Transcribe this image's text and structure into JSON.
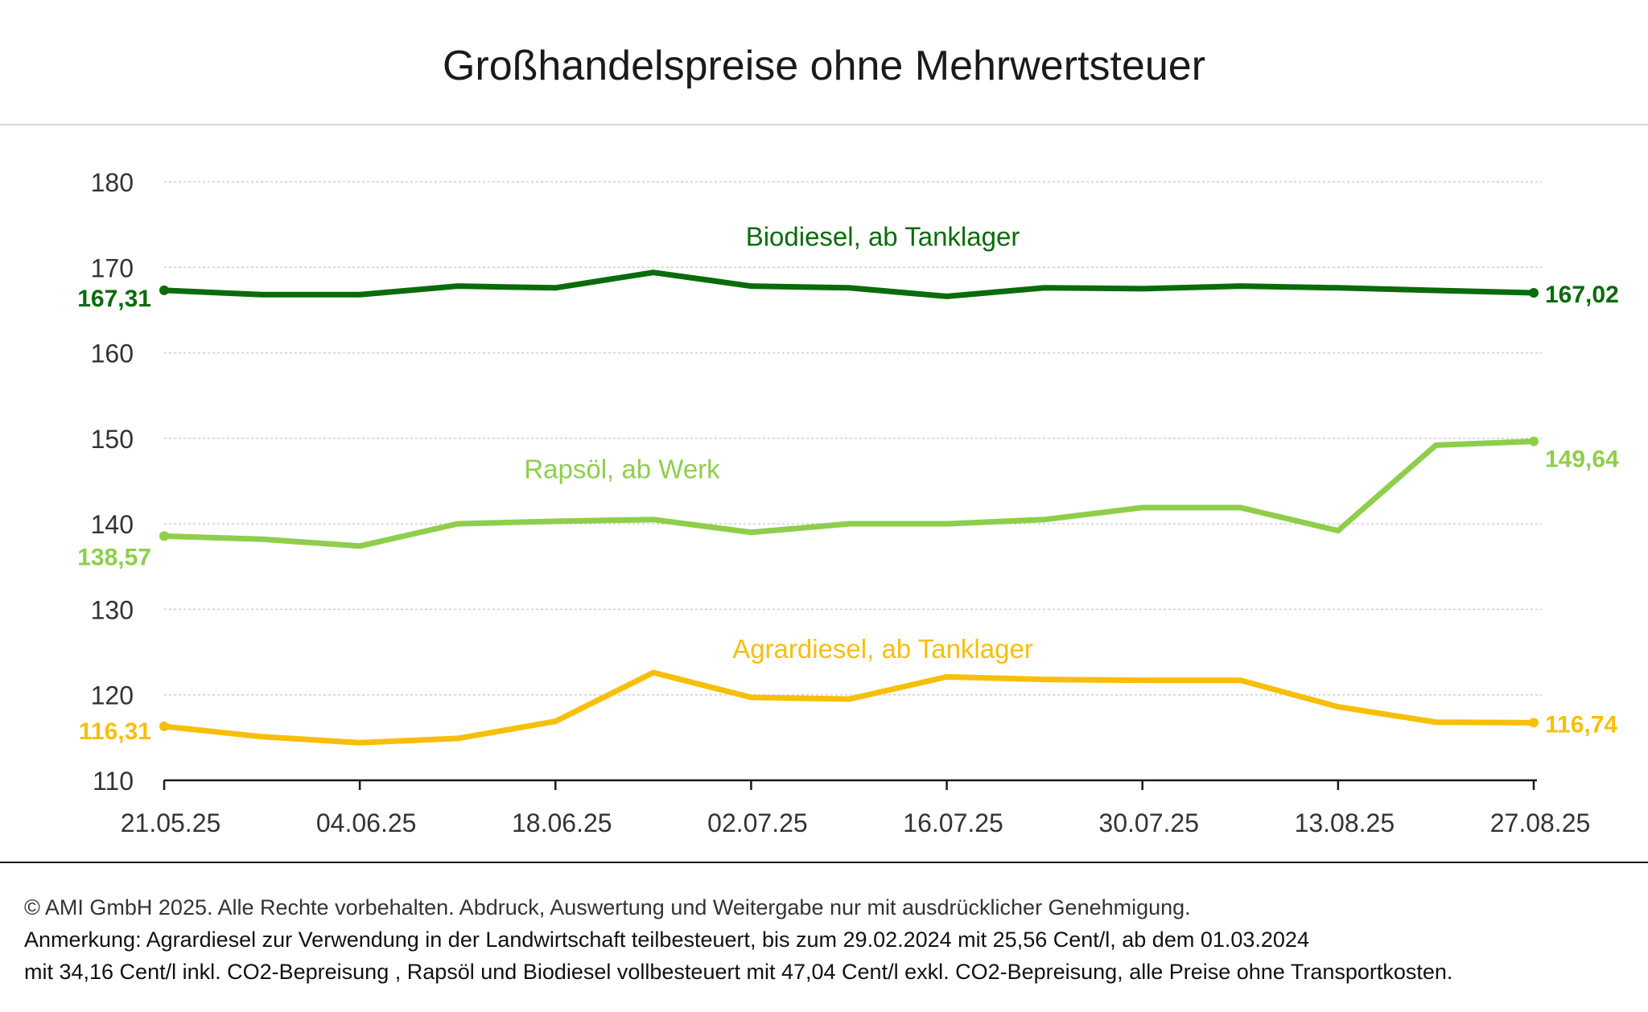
{
  "title": "Großhandelspreise ohne Mehrwertsteuer",
  "colors": {
    "biodiesel": "#0a6b0a",
    "rapsoel": "#8fce4c",
    "agrardiesel": "#f7bf0a",
    "grid": "#cfcfcf",
    "axis": "#1a1a1a",
    "text": "#333333"
  },
  "chart_data": {
    "type": "line",
    "title": "Großhandelspreise ohne Mehrwertsteuer",
    "xlabel": "",
    "ylabel": "",
    "ylim": [
      110,
      180
    ],
    "yticks": [
      "110",
      "120",
      "130",
      "140",
      "150",
      "160",
      "170",
      "180"
    ],
    "ytick_values": [
      110,
      120,
      130,
      140,
      150,
      160,
      170,
      180
    ],
    "x": [
      "21.05.25",
      "28.05.25",
      "04.06.25",
      "11.06.25",
      "18.06.25",
      "25.06.25",
      "02.07.25",
      "09.07.25",
      "16.07.25",
      "23.07.25",
      "30.07.25",
      "06.08.25",
      "13.08.25",
      "20.08.25",
      "27.08.25"
    ],
    "xtick_labels": [
      "21.05.25",
      "04.06.25",
      "18.06.25",
      "02.07.25",
      "16.07.25",
      "30.07.25",
      "13.08.25",
      "27.08.25"
    ],
    "grid": true,
    "series": [
      {
        "key": "biodiesel",
        "name": "Biodiesel, ab Tanklager",
        "values": [
          167.31,
          166.8,
          166.8,
          167.8,
          167.6,
          169.4,
          167.8,
          167.6,
          166.6,
          167.6,
          167.5,
          167.8,
          167.6,
          167.3,
          167.02
        ],
        "first_label": "167,31",
        "last_label": "167,02"
      },
      {
        "key": "rapsoel",
        "name": "Rapsöl, ab Werk",
        "values": [
          138.57,
          138.2,
          137.4,
          140.0,
          140.3,
          140.5,
          139.0,
          140.0,
          140.0,
          140.5,
          141.9,
          141.9,
          139.2,
          149.2,
          149.64
        ],
        "first_label": "138,57",
        "last_label": "149,64"
      },
      {
        "key": "agrardiesel",
        "name": "Agrardiesel, ab Tanklager",
        "values": [
          116.31,
          115.1,
          114.4,
          114.9,
          116.9,
          122.6,
          119.7,
          119.5,
          122.1,
          121.8,
          121.7,
          121.7,
          118.6,
          116.8,
          116.74
        ],
        "first_label": "116,31",
        "last_label": "116,74"
      }
    ]
  },
  "footer": {
    "copyright": "© AMI GmbH 2025.  Alle Rechte vorbehalten.  Abdruck, Auswertung und Weitergabe nur mit ausdrücklicher Genehmigung.",
    "note_line1": "Anmerkung: Agrardiesel zur Verwendung in der Landwirtschaft teilbesteuert, bis zum 29.02.2024 mit 25,56 Cent/l, ab dem 01.03.2024",
    "note_line2": "mit 34,16 Cent/l inkl. CO2-Bepreisung , Rapsöl und Biodiesel vollbesteuert mit 47,04 Cent/l exkl. CO2-Bepreisung, alle Preise ohne Transportkosten."
  }
}
